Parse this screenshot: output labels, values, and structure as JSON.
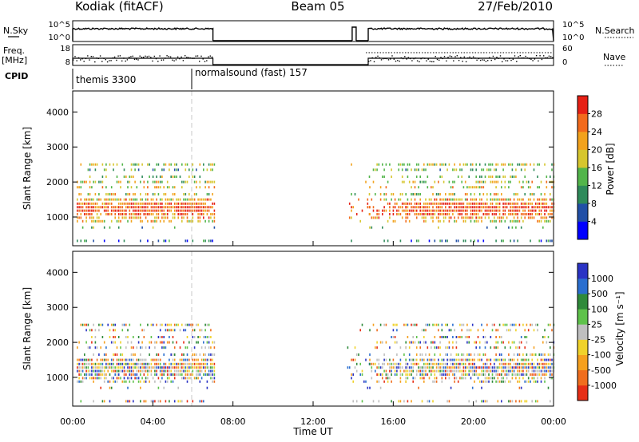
{
  "header": {
    "site": "Kodiak (fitACF)",
    "beam": "Beam 05",
    "date": "27/Feb/2010"
  },
  "left_labels": {
    "nsky": "N.Sky",
    "freq_line1": "Freq.",
    "freq_line2": "[MHz]",
    "cpid": "CPID"
  },
  "right_labels": {
    "nsearch": "N.Search",
    "nave": "Nave"
  },
  "noise_panel": {
    "y_ticks": [
      "10^5",
      "10^0"
    ],
    "right_ticks": [
      "10^5",
      "10^0"
    ]
  },
  "freq_panel": {
    "y_ticks": [
      "18",
      "8"
    ],
    "right_ticks": [
      "60",
      "0"
    ]
  },
  "cpid_panel": {
    "segments": [
      {
        "label": "themis 3300",
        "start_hour": 0
      },
      {
        "label": "normalsound (fast) 157",
        "start_hour": 6
      }
    ]
  },
  "chart_data": [
    {
      "type": "heatmap",
      "name": "power",
      "ylabel": "Slant Range [km]",
      "y_ticks": [
        "1000",
        "2000",
        "3000",
        "4000"
      ],
      "ylim": [
        180,
        4600
      ],
      "colorbar": {
        "label": "Power [dB]",
        "ticks": [
          "4",
          "8",
          "12",
          "16",
          "20",
          "24",
          "28"
        ],
        "range": [
          0,
          32
        ],
        "colors": [
          "#0000ff",
          "#214fa6",
          "#2e8a5a",
          "#52b54a",
          "#d6c62e",
          "#f2a21c",
          "#f26a1c",
          "#e62015"
        ]
      }
    },
    {
      "type": "heatmap",
      "name": "velocity",
      "xlabel": "Time UT",
      "ylabel": "Slant Range [km]",
      "x_ticks": [
        "00:00",
        "04:00",
        "08:00",
        "12:00",
        "16:00",
        "20:00",
        "00:00"
      ],
      "y_ticks": [
        "1000",
        "2000",
        "3000",
        "4000"
      ],
      "xlim": [
        0,
        24
      ],
      "ylim": [
        180,
        4600
      ],
      "colorbar": {
        "label": "Velocity [m s⁻¹]",
        "ticks": [
          "1000",
          "500",
          "100",
          "25",
          "-25",
          "-100",
          "-500",
          "-1000"
        ],
        "colors": [
          "#2a33c4",
          "#2a6ecf",
          "#2f8a3a",
          "#5ec24a",
          "#bfbfbf",
          "#f0d22a",
          "#f5a01e",
          "#f06e1e",
          "#e62e16"
        ]
      }
    }
  ]
}
